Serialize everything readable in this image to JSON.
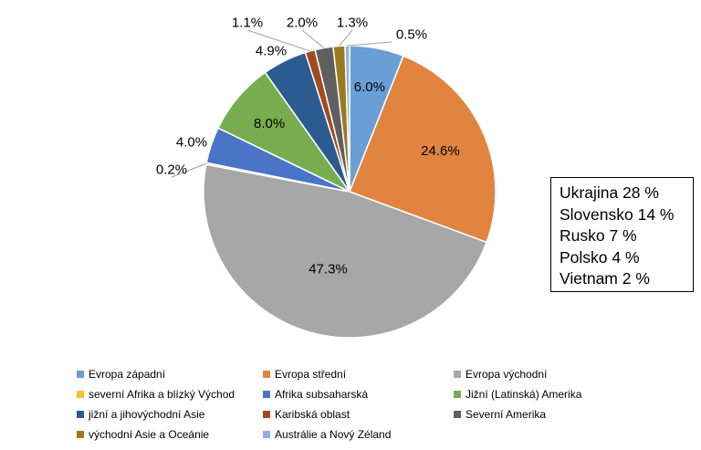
{
  "chart_data": {
    "type": "pie",
    "slices": [
      {
        "name": "Evropa západní",
        "value": 6.0,
        "label": "6.0%",
        "color": "#6a9fd6"
      },
      {
        "name": "Evropa střední",
        "value": 24.6,
        "label": "24.6%",
        "color": "#e08440"
      },
      {
        "name": "Evropa východní",
        "value": 47.3,
        "label": "47.3%",
        "color": "#a7a7a7"
      },
      {
        "name": "severní Afrika a blízký Východ",
        "value": 0.2,
        "label": "0.2%",
        "color": "#f6c02f"
      },
      {
        "name": "Afrika subsaharská",
        "value": 4.0,
        "label": "4.0%",
        "color": "#4a74c6"
      },
      {
        "name": "Jižní (Latinská) Amerika",
        "value": 8.0,
        "label": "8.0%",
        "color": "#78ad4f"
      },
      {
        "name": "jižní a jihovýchodní Asie",
        "value": 4.9,
        "label": "4.9%",
        "color": "#2c5b92"
      },
      {
        "name": "Karibská oblast",
        "value": 1.1,
        "label": "1.1%",
        "color": "#a24c1e"
      },
      {
        "name": "Severní Amerika",
        "value": 2.0,
        "label": "2.0%",
        "color": "#5f5f5f"
      },
      {
        "name": "východní Asie a Oceánie",
        "value": 1.3,
        "label": "1.3%",
        "color": "#9b7a1f"
      },
      {
        "name": "Austrálie a Nový Zéland",
        "value": 0.5,
        "label": "0.5%",
        "color": "#95aee0"
      }
    ],
    "legend_position": "bottom"
  },
  "note_box": {
    "lines": [
      "Ukrajina 28 %",
      "Slovensko 14 %",
      "Rusko 7 %",
      "Polsko 4 %",
      "Vietnam 2 %"
    ]
  }
}
